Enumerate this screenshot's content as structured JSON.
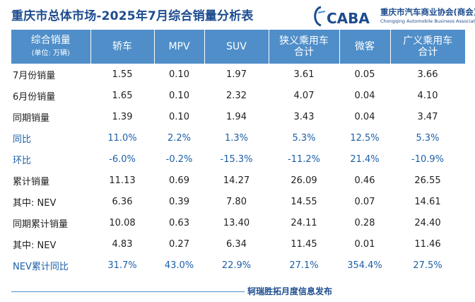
{
  "title": "重庆市总体市场-2025年7月综合销量分析表",
  "logo": {
    "mark": "CABA",
    "name_cn": "重庆市汽车商业协会(商会)",
    "name_en": "Chongqing Automobile Business Association"
  },
  "table": {
    "header": {
      "label_main": "综合销量",
      "label_unit": "(单位: 万辆)",
      "cols": [
        {
          "l1": "轿车",
          "l2": ""
        },
        {
          "l1": "MPV",
          "l2": ""
        },
        {
          "l1": "SUV",
          "l2": ""
        },
        {
          "l1": "狭义乘用车",
          "l2": "合计"
        },
        {
          "l1": "微客",
          "l2": ""
        },
        {
          "l1": "广义乘用车",
          "l2": "合计"
        }
      ]
    },
    "rows": [
      {
        "label": "7月份销量",
        "values": [
          "1.55",
          "0.10",
          "1.97",
          "3.61",
          "0.05",
          "3.66"
        ]
      },
      {
        "label": "6月份销量",
        "values": [
          "1.65",
          "0.10",
          "2.32",
          "4.07",
          "0.04",
          "4.10"
        ]
      },
      {
        "label": "同期销量",
        "values": [
          "1.39",
          "0.10",
          "1.94",
          "3.43",
          "0.04",
          "3.47"
        ]
      },
      {
        "label": "同比",
        "values": [
          "11.0%",
          "2.2%",
          "1.3%",
          "5.3%",
          "12.5%",
          "5.3%"
        ]
      },
      {
        "label": "环比",
        "values": [
          "-6.0%",
          "-0.2%",
          "-15.3%",
          "-11.2%",
          "21.4%",
          "-10.9%"
        ]
      },
      {
        "label": "累计销量",
        "values": [
          "11.13",
          "0.69",
          "14.27",
          "26.09",
          "0.46",
          "26.55"
        ]
      },
      {
        "label": "其中: NEV",
        "values": [
          "6.36",
          "0.39",
          "7.80",
          "14.55",
          "0.07",
          "14.61"
        ]
      },
      {
        "label": "同期累计销量",
        "values": [
          "10.08",
          "0.63",
          "13.40",
          "24.11",
          "0.28",
          "24.40"
        ]
      },
      {
        "label": "其中: NEV",
        "values": [
          "4.83",
          "0.27",
          "6.34",
          "11.45",
          "0.01",
          "11.46"
        ]
      },
      {
        "label": "NEV累计同比",
        "values": [
          "31.7%",
          "43.0%",
          "22.9%",
          "27.1%",
          "354.4%",
          "27.5%"
        ]
      }
    ]
  },
  "footer": "轲瑞胜拓月度信息发布",
  "colors": {
    "header_bg": "#4f8ec9",
    "title": "#1d4c8f",
    "percent_text": "#1d5fa8"
  }
}
